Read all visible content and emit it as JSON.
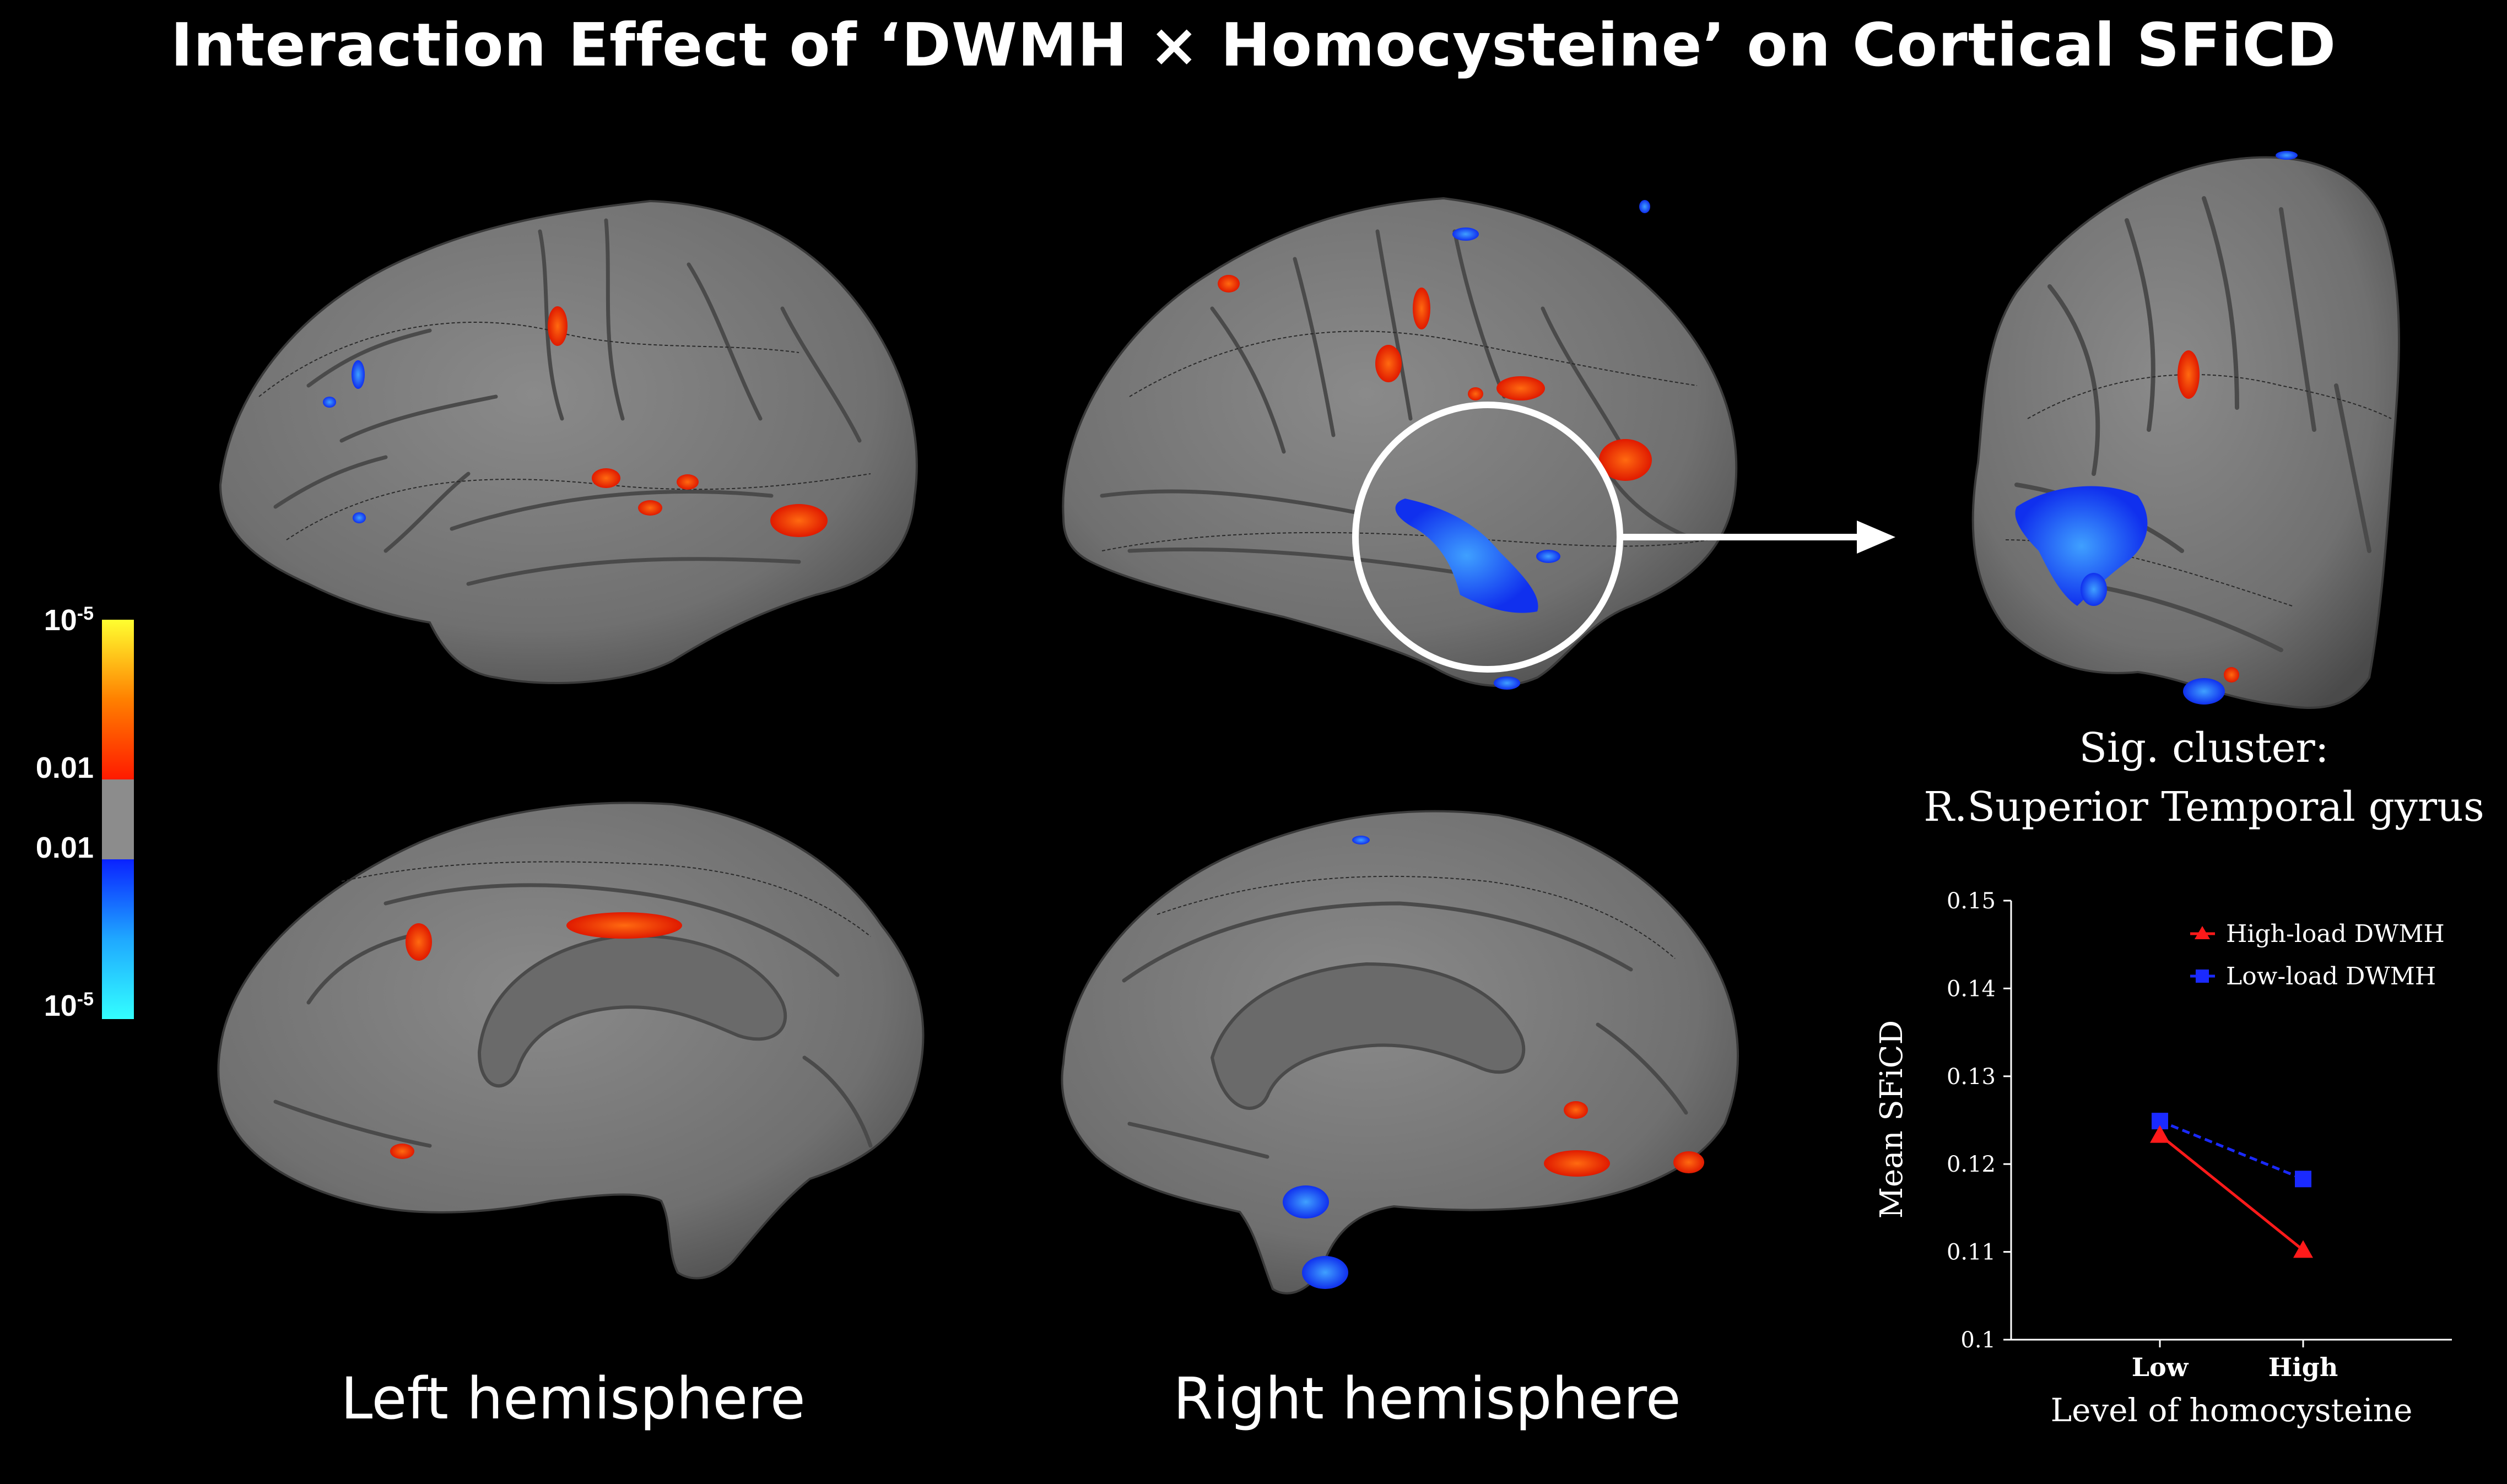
{
  "title": "Interaction Effect of ‘DWMH × Homocysteine’ on Cortical SFiCD",
  "colorbar": {
    "ticks": [
      "10",
      "0.01",
      "0.01",
      "10"
    ],
    "exp": [
      "-5",
      "-5"
    ],
    "positive_colors": [
      "#ffff30",
      "#ff8000",
      "#ff1a00"
    ],
    "neutral_color": "#8c8c8c",
    "negative_colors": [
      "#0a22ff",
      "#1fa8ff",
      "#33ffff"
    ]
  },
  "hemispheres": {
    "left_label": "Left hemisphere",
    "right_label": "Right hemisphere"
  },
  "zoom": {
    "cluster_label_line1": "Sig. cluster:",
    "cluster_label_line2": "R.Superior Temporal gyrus"
  },
  "colors": {
    "cortex": "#7a7a7a",
    "cortex_dark": "#5a5a5a",
    "red_cluster": "#ee2a0a",
    "blue_cluster": "#1a5cff"
  },
  "chart_data": {
    "type": "line",
    "categories": [
      "Low",
      "High"
    ],
    "series": [
      {
        "name": "High-load DWMH",
        "values": [
          0.1233,
          0.1102
        ],
        "color": "#ff1a1a",
        "marker": "triangle",
        "style": "solid"
      },
      {
        "name": "Low-load DWMH",
        "values": [
          0.1249,
          0.1183
        ],
        "color": "#1a2aff",
        "marker": "square",
        "style": "dashed"
      }
    ],
    "xlabel": "Level of homocysteine",
    "ylabel": "Mean SFiCD",
    "ylim": [
      0.1,
      0.15
    ],
    "yticks": [
      "0.1",
      "0.11",
      "0.12",
      "0.13",
      "0.14",
      "0.15"
    ],
    "legend_position": "top-right",
    "grid": false
  }
}
